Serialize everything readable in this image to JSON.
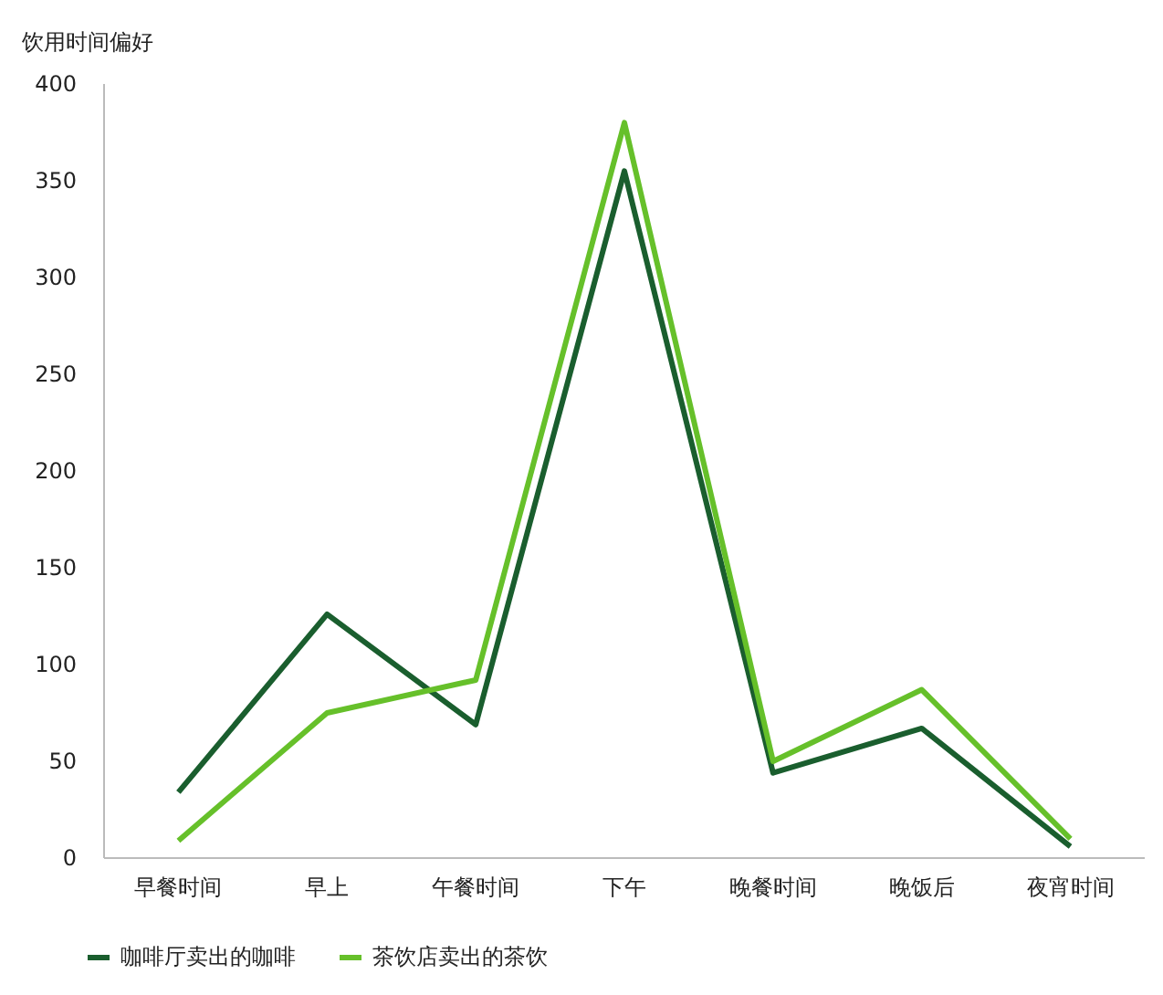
{
  "chart_data": {
    "type": "line",
    "ylabel": "饮用时间偏好",
    "categories": [
      "早餐时间",
      "早上",
      "午餐时间",
      "下午",
      "晚餐时间",
      "晚饭后",
      "夜宵时间"
    ],
    "series": [
      {
        "name": "咖啡厅卖出的咖啡",
        "color": "#1a5e2e",
        "values": [
          34,
          126,
          69,
          355,
          44,
          67,
          6
        ]
      },
      {
        "name": "茶饮店卖出的茶饮",
        "color": "#66c02a",
        "values": [
          9,
          75,
          92,
          380,
          50,
          87,
          10
        ]
      }
    ],
    "ylim": [
      0,
      400
    ],
    "yticks": [
      0,
      50,
      100,
      150,
      200,
      250,
      300,
      350,
      400
    ],
    "grid": false,
    "legend": "bottom left",
    "marker": "none",
    "line_style": "solid"
  }
}
